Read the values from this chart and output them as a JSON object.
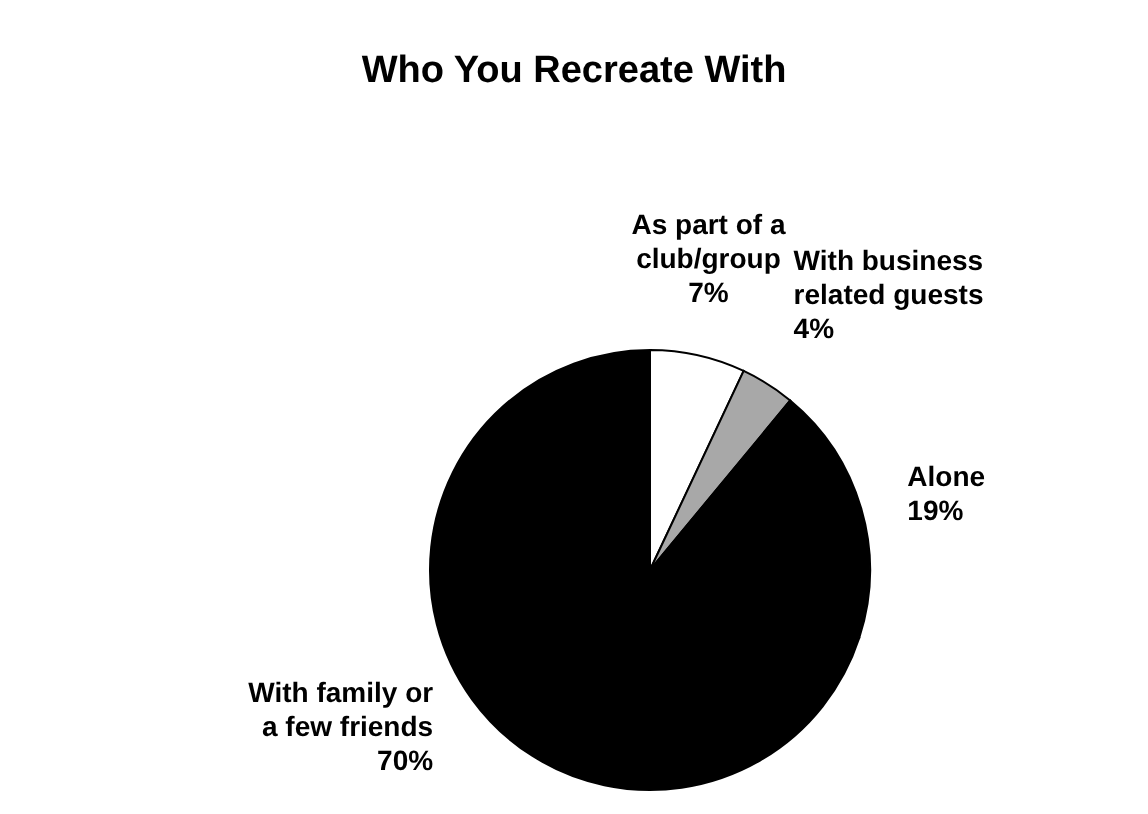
{
  "chart_data": {
    "type": "pie",
    "title": "Who You Recreate With",
    "categories": [
      "As part of a club/group",
      "With business related guests",
      "Alone",
      "With family or a few friends"
    ],
    "values": [
      7,
      4,
      19,
      70
    ],
    "colors": [
      "#ffffff",
      "#a8a8a8",
      "#000000",
      "#000000"
    ],
    "value_labels": [
      "7%",
      "4%",
      "19%",
      "70%"
    ]
  }
}
